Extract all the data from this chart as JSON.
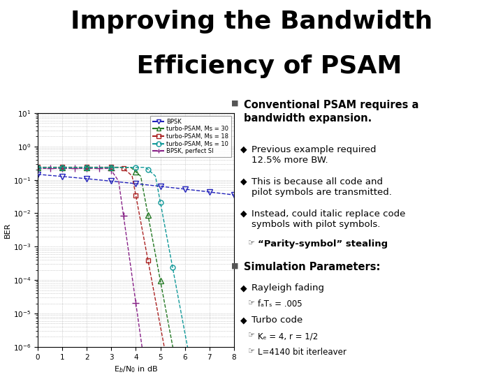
{
  "title_line1": "Improving the Bandwidth",
  "title_line2": "    Efficiency of PSAM",
  "title_fontsize": 26,
  "title_fontweight": "bold",
  "title_fontfamily": "sans-serif",
  "bg_color": "#ffffff",
  "xlabel": "E$_b$/N$_0$ in dB",
  "ylabel": "BER",
  "xlim": [
    0,
    8
  ],
  "legend_labels": [
    "BPSK",
    "turbo-PSAM, Ms = 30",
    "turbo-PSAM, Ms = 18",
    "turbo-PSAM, Ms = 10",
    "BPSK, perfect SI"
  ],
  "legend_colors": [
    "#2222bb",
    "#227722",
    "#aa2222",
    "#119999",
    "#882288"
  ],
  "legend_markers": [
    "v",
    "^",
    "s",
    "o",
    "+"
  ]
}
